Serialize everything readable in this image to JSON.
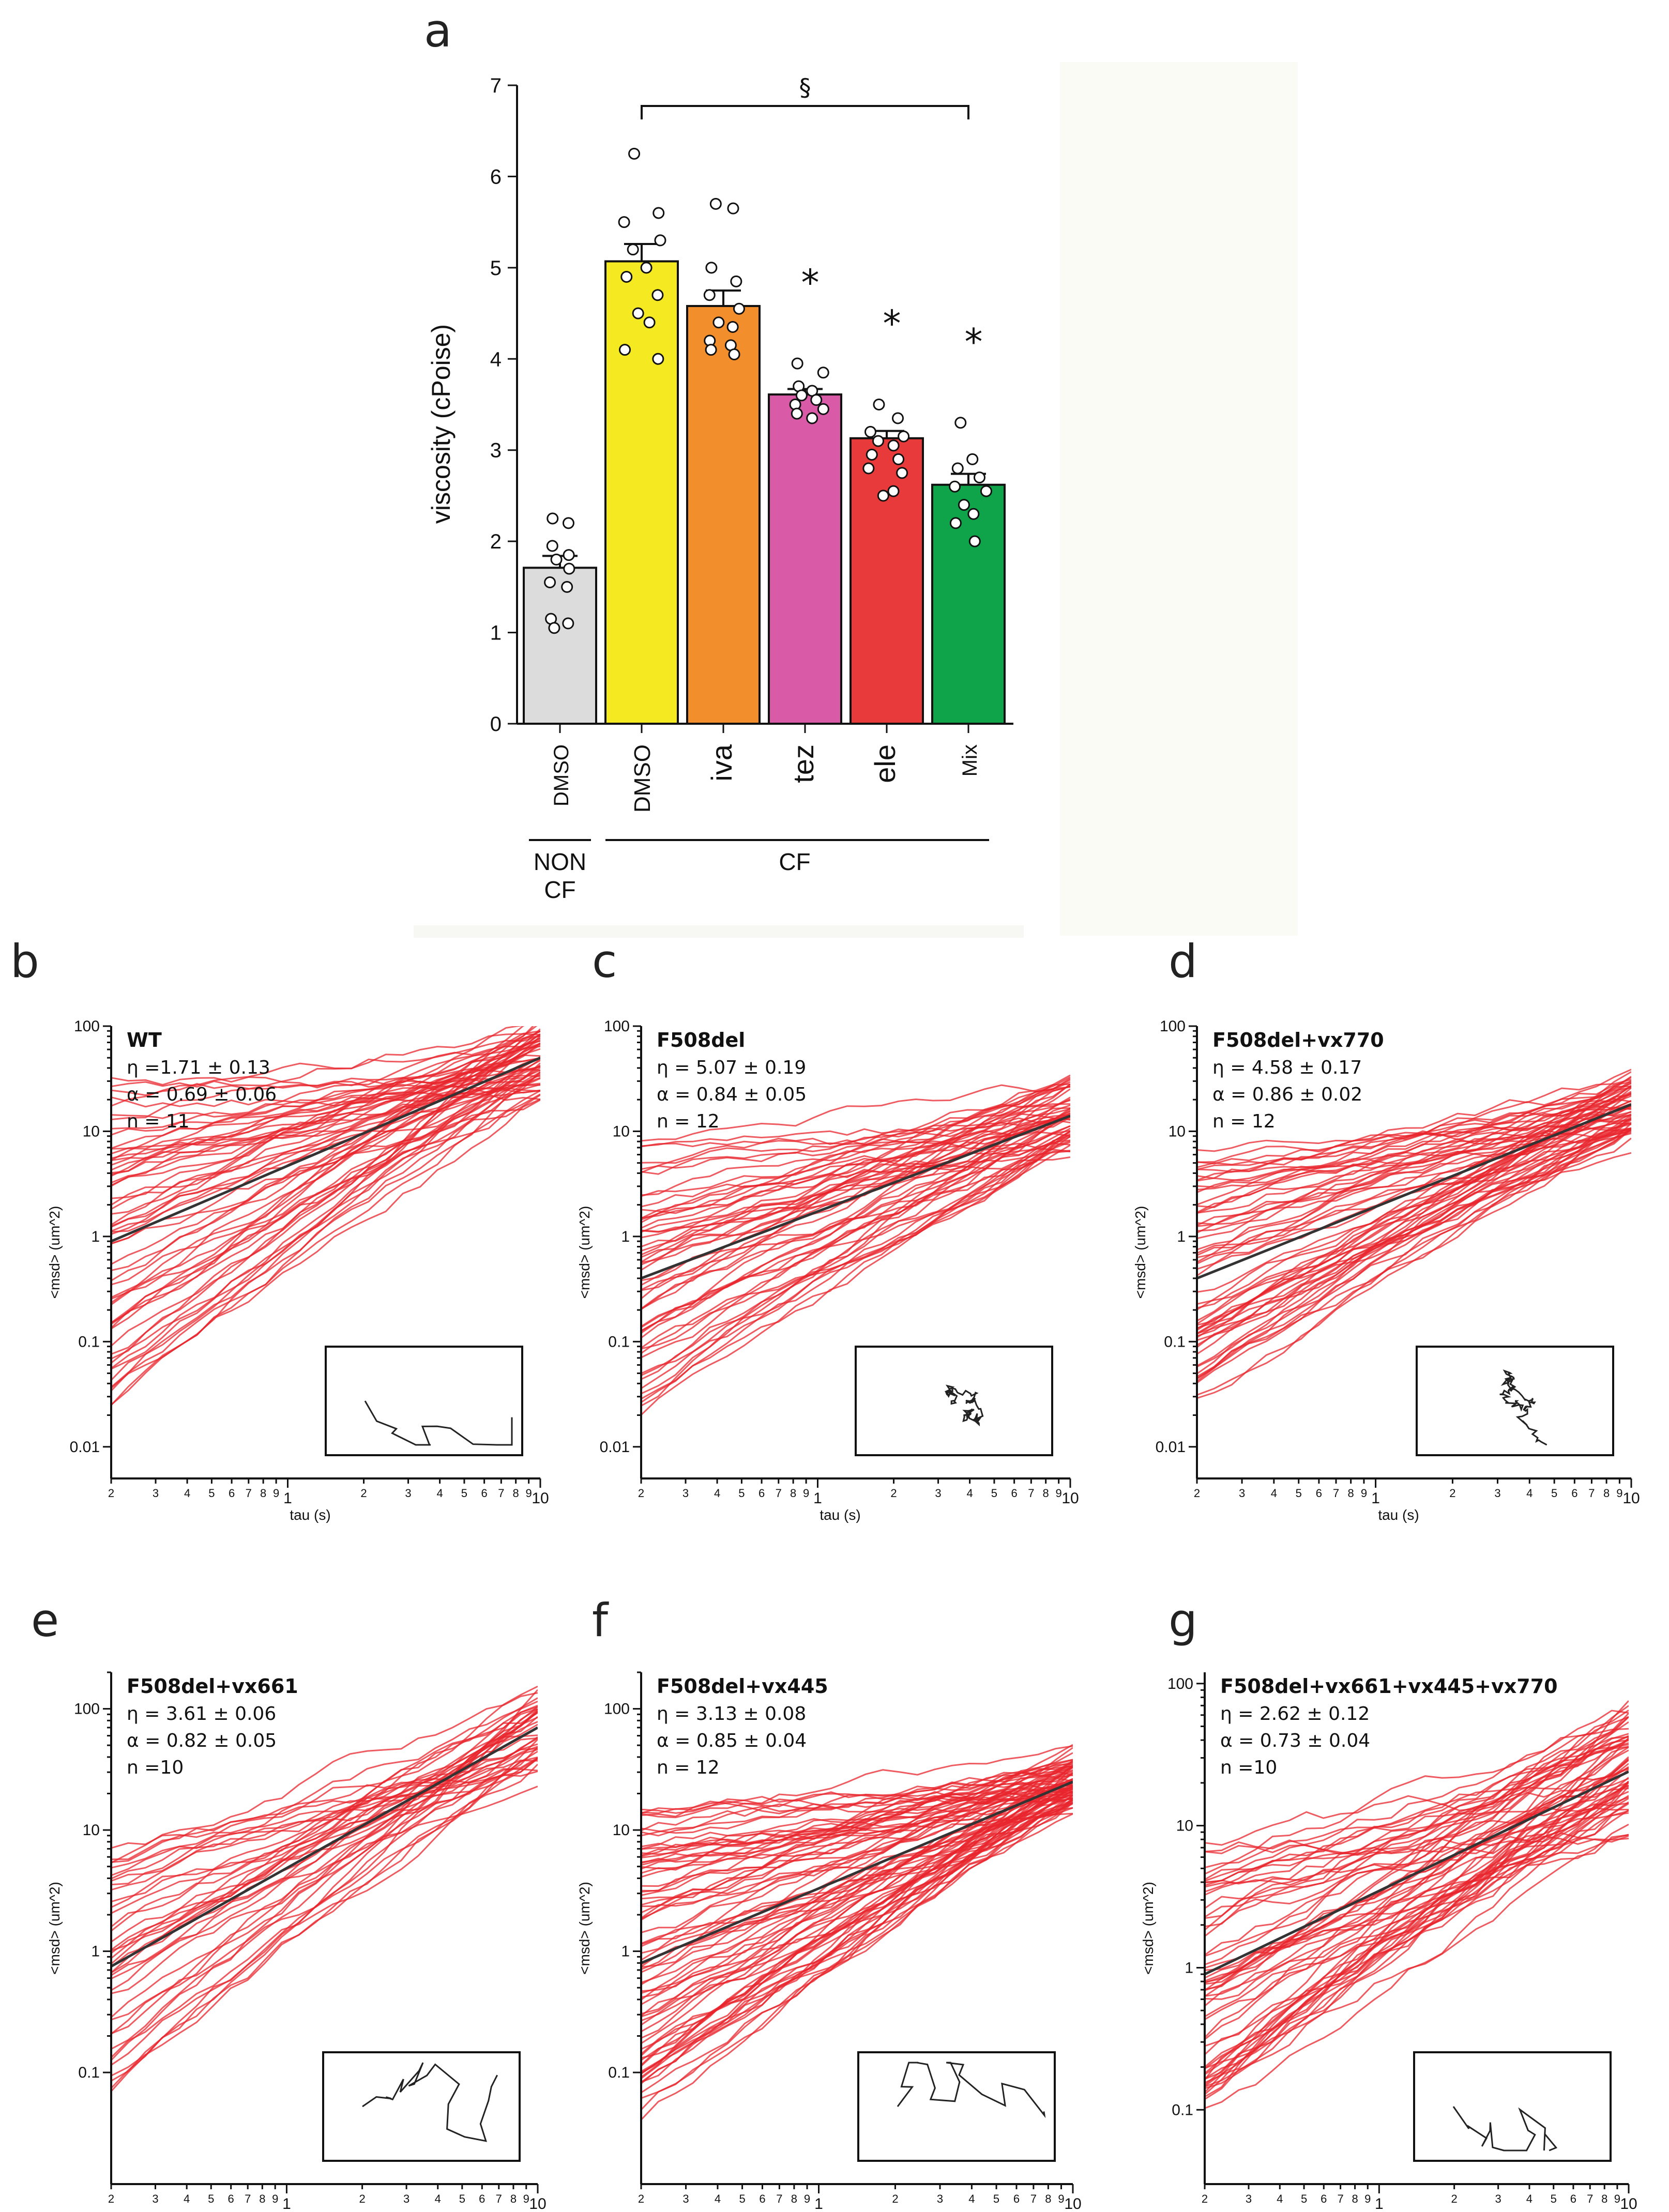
{
  "panel_a": {
    "letter": "a",
    "chart_data": {
      "type": "bar",
      "ylabel": "viscosity  (cPoise)",
      "ylim": [
        0,
        7
      ],
      "yticks": [
        "0",
        "1",
        "2",
        "3",
        "4",
        "5",
        "6",
        "7"
      ],
      "categories": [
        "DMSO",
        "DMSO",
        "iva",
        "tez",
        "ele",
        "Mix"
      ],
      "values": [
        1.71,
        5.07,
        4.58,
        3.61,
        3.13,
        2.62
      ],
      "sem": [
        0.13,
        0.19,
        0.17,
        0.06,
        0.08,
        0.12
      ],
      "colors": [
        "#dcdcdc",
        "#f5ea22",
        "#f28e2b",
        "#d95aa6",
        "#e83a3a",
        "#0fa34a"
      ],
      "points": [
        [
          2.25,
          2.2,
          1.95,
          1.85,
          1.8,
          1.7,
          1.55,
          1.5,
          1.15,
          1.1,
          1.05
        ],
        [
          6.25,
          5.6,
          5.5,
          5.3,
          5.2,
          5.0,
          4.9,
          4.7,
          4.5,
          4.4,
          4.1,
          4.0
        ],
        [
          5.7,
          5.65,
          5.0,
          4.85,
          4.7,
          4.55,
          4.4,
          4.35,
          4.2,
          4.15,
          4.1,
          4.05
        ],
        [
          3.95,
          3.85,
          3.7,
          3.65,
          3.6,
          3.55,
          3.5,
          3.45,
          3.4,
          3.35
        ],
        [
          3.5,
          3.35,
          3.2,
          3.15,
          3.1,
          3.05,
          2.95,
          2.9,
          2.8,
          2.55,
          2.5,
          2.75
        ],
        [
          3.3,
          2.9,
          2.8,
          2.7,
          2.6,
          2.55,
          2.4,
          2.3,
          2.2,
          2.0
        ]
      ],
      "significance": [
        "",
        "",
        "",
        "*",
        "*",
        "*"
      ],
      "bracket_label": "§",
      "groups": [
        {
          "label_line1": "NON",
          "label_line2": "CF"
        },
        {
          "label_line1": "CF",
          "label_line2": ""
        }
      ]
    }
  },
  "msd_common": {
    "ylabel": "<msd>  (um^2)",
    "xlabel": "tau (s)",
    "x_major_labels": [
      "1",
      "10"
    ],
    "x_minor_labels": [
      "2",
      "3",
      "4",
      "5",
      "6",
      "7",
      "8",
      "9"
    ],
    "y_labels": [
      "100",
      "10",
      "1",
      "0.1",
      "0.01"
    ]
  },
  "msd_panels": [
    {
      "letter": "b",
      "title": "WT",
      "eta": "η =1.71 ± 0.13",
      "alpha": "α = 0.69 ± 0.06",
      "n": "n = 11",
      "chart_data": {
        "type": "line",
        "xscale": "log",
        "yscale": "log",
        "xlim": [
          0.2,
          10
        ],
        "ylim": [
          0.005,
          100
        ],
        "mean_start": 0.9,
        "mean_end": 50,
        "spread_start": 1.6,
        "spread_end": 0.4,
        "n_traces": 60
      }
    },
    {
      "letter": "c",
      "title": "F508del",
      "eta": "η = 5.07 ± 0.19",
      "alpha": "α = 0.84 ± 0.05",
      "n": "n = 12",
      "chart_data": {
        "type": "line",
        "xscale": "log",
        "yscale": "log",
        "xlim": [
          0.2,
          10
        ],
        "ylim": [
          0.005,
          100
        ],
        "mean_start": 0.4,
        "mean_end": 14,
        "spread_start": 1.3,
        "spread_end": 0.35,
        "n_traces": 55
      }
    },
    {
      "letter": "d",
      "title": "F508del+vx770",
      "eta": "η = 4.58 ± 0.17",
      "alpha": "α = 0.86 ± 0.02",
      "n": "n = 12",
      "chart_data": {
        "type": "line",
        "xscale": "log",
        "yscale": "log",
        "xlim": [
          0.2,
          10
        ],
        "ylim": [
          0.005,
          100
        ],
        "mean_start": 0.4,
        "mean_end": 18,
        "spread_start": 1.2,
        "spread_end": 0.35,
        "n_traces": 60
      }
    },
    {
      "letter": "e",
      "title": "F508del+vx661",
      "eta": "η = 3.61 ± 0.06",
      "alpha": "α = 0.82 ± 0.05",
      "n": "n =10",
      "chart_data": {
        "type": "line",
        "xscale": "log",
        "yscale": "log",
        "xlim": [
          0.2,
          10
        ],
        "ylim": [
          0.012,
          200
        ],
        "mean_start": 0.75,
        "mean_end": 70,
        "spread_start": 1.0,
        "spread_end": 0.35,
        "n_traces": 40
      }
    },
    {
      "letter": "f",
      "title": "F508del+vx445",
      "eta": "η = 3.13 ± 0.08",
      "alpha": "α = 0.85 ± 0.04",
      "n": "n = 12",
      "chart_data": {
        "type": "line",
        "xscale": "log",
        "yscale": "log",
        "xlim": [
          0.2,
          10
        ],
        "ylim": [
          0.012,
          200
        ],
        "mean_start": 0.8,
        "mean_end": 25,
        "spread_start": 1.3,
        "spread_end": 0.2,
        "n_traces": 80
      }
    },
    {
      "letter": "g",
      "title": "F508del+vx661+vx445+vx770",
      "eta": "η = 2.62 ± 0.12",
      "alpha": "α = 0.73 ± 0.04",
      "n": "n =10",
      "chart_data": {
        "type": "line",
        "xscale": "log",
        "yscale": "log",
        "xlim": [
          0.2,
          10
        ],
        "ylim": [
          0.03,
          120
        ],
        "mean_start": 0.9,
        "mean_end": 24,
        "spread_start": 1.0,
        "spread_end": 0.45,
        "n_traces": 60
      }
    }
  ],
  "colors": {
    "trace": "#e8242c",
    "mean": "#333333",
    "traj": "#222222"
  }
}
